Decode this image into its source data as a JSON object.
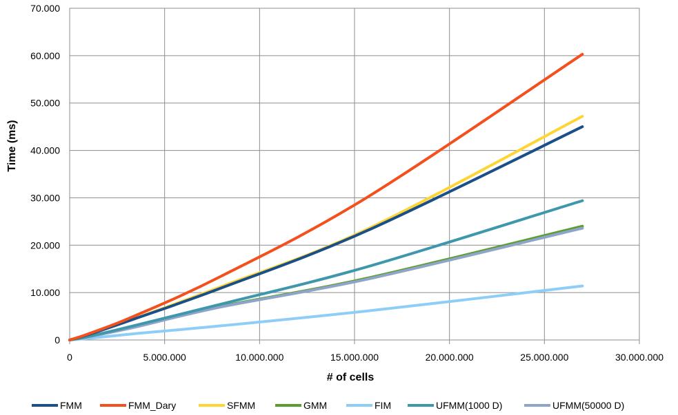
{
  "chart_data": {
    "type": "line",
    "title": "",
    "xlabel": "# of cells",
    "ylabel": "Time (ms)",
    "xlim": [
      0,
      30000000
    ],
    "ylim": [
      0,
      70000
    ],
    "x_ticks": [
      0,
      5000000,
      10000000,
      15000000,
      20000000,
      25000000,
      30000000
    ],
    "x_tick_labels": [
      "0",
      "5.000.000",
      "10.000.000",
      "15.000.000",
      "20.000.000",
      "25.000.000",
      "30.000.000"
    ],
    "y_ticks": [
      0,
      10000,
      20000,
      30000,
      40000,
      50000,
      60000,
      70000
    ],
    "y_tick_labels": [
      "0",
      "10.000",
      "20.000",
      "30.000",
      "40.000",
      "50.000",
      "60.000",
      "70.000"
    ],
    "grid": "vertical and horizontal",
    "legend_position": "bottom",
    "x": [
      0,
      1000000,
      3375000,
      8000000,
      15625000,
      27000000
    ],
    "series": [
      {
        "name": "FMM",
        "color": "#1a4f8a",
        "values": [
          0,
          1150,
          4400,
          11000,
          23000,
          45000
        ]
      },
      {
        "name": "FMM_Dary",
        "color": "#f4501e",
        "values": [
          0,
          1300,
          5000,
          13500,
          30000,
          60300
        ]
      },
      {
        "name": "SFMM",
        "color": "#fdd535",
        "values": [
          0,
          1200,
          4450,
          11300,
          23300,
          47200
        ]
      },
      {
        "name": "GMM",
        "color": "#5a9e2e",
        "values": [
          0,
          700,
          2700,
          7100,
          13000,
          24000
        ]
      },
      {
        "name": "FIM",
        "color": "#8ecdf7",
        "values": [
          0,
          350,
          1300,
          3000,
          6100,
          11400
        ]
      },
      {
        "name": "UFMM(1000 D)",
        "color": "#3e97ab",
        "values": [
          0,
          750,
          3000,
          7600,
          15400,
          29400
        ]
      },
      {
        "name": "UFMM(50000 D)",
        "color": "#8fa4c9",
        "values": [
          0,
          700,
          2650,
          7000,
          12800,
          23600
        ]
      }
    ]
  }
}
